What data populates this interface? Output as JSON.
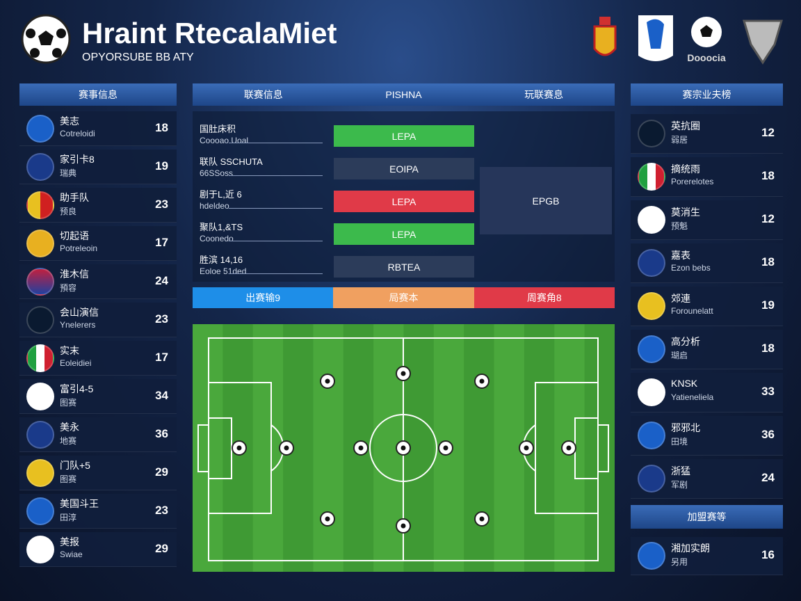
{
  "header": {
    "title": "Hraint RtecalaMiet",
    "subtitle": "OPYORSUBE BB ATY",
    "logo_text": "Dooocia"
  },
  "left_panel": {
    "title": "赛事信息",
    "rows": [
      {
        "name": "美志",
        "sub": "Cotreloidi",
        "value": 18
      },
      {
        "name": "家引卡8",
        "sub": "瑞典",
        "value": 19
      },
      {
        "name": "助手队",
        "sub": "预良",
        "value": 23
      },
      {
        "name": "切起语",
        "sub": "Potreleoin",
        "value": 17
      },
      {
        "name": "淮木信",
        "sub": "預容",
        "value": 24
      },
      {
        "name": "会山演信",
        "sub": "Ynelerers",
        "value": 23
      },
      {
        "name": "实末",
        "sub": "Eoleidiei",
        "value": 17
      },
      {
        "name": "富引4-5",
        "sub": "图赛",
        "value": 34
      },
      {
        "name": "美永",
        "sub": "地赛",
        "value": 36
      },
      {
        "name": "门队+5",
        "sub": "图赛",
        "value": 29
      },
      {
        "name": "美国斗王",
        "sub": "田淳",
        "value": 23
      },
      {
        "name": "美报",
        "sub": "Swiae",
        "value": 29
      }
    ]
  },
  "center_panel": {
    "headers": [
      "联赛信息",
      "PISHNA",
      "玩联赛息"
    ],
    "info_rows": [
      {
        "label": "国肚床积",
        "sub": "Coooao Uoal",
        "button": "LEPA",
        "color": "#3cba4c"
      },
      {
        "label": "联队 SSCHUTA",
        "sub": "66SSoss",
        "button": "EOIPA",
        "color": "#2c3c5a"
      },
      {
        "label": "剧于L,近 6",
        "sub": "hdeldeo",
        "button": "LEPA",
        "color": "#e03a48"
      },
      {
        "label": "聚队1,&TS",
        "sub": "Coonedo",
        "button": "LEPA",
        "color": "#3cba4c"
      },
      {
        "label": "胜滨 14,16",
        "sub": "Eoloe 51ded",
        "button": "RBTEA",
        "color": "#2c3c5a"
      }
    ],
    "side_box": "EPGB",
    "tabs": [
      {
        "text": "出赛输9",
        "color": "#1e8ee8"
      },
      {
        "text": "局赛本",
        "color": "#f0a060"
      },
      {
        "text": "周赛角8",
        "color": "#e03a48"
      }
    ]
  },
  "right_panel": {
    "title": "赛宗业夫榜",
    "rows": [
      {
        "name": "英抗圈",
        "sub": "弱居",
        "value": 12
      },
      {
        "name": "摘统雨",
        "sub": "Porerelotes",
        "value": 18
      },
      {
        "name": "莫消生",
        "sub": "预魁",
        "value": 12
      },
      {
        "name": "嘉表",
        "sub": "Ezon bebs",
        "value": 18
      },
      {
        "name": "郊連",
        "sub": "Forounelatt",
        "value": 19
      },
      {
        "name": "高分析",
        "sub": "瑚启",
        "value": 18
      },
      {
        "name": "KNSK",
        "sub": "Yatieneliela",
        "value": 33
      },
      {
        "name": "邪邪北",
        "sub": "田境",
        "value": 36
      },
      {
        "name": "浙猛",
        "sub": "军剧",
        "value": 24
      }
    ],
    "second_title": "加盟赛等",
    "second_rows": [
      {
        "name": "湘加实朗",
        "sub": "另用",
        "value": 16
      }
    ]
  }
}
